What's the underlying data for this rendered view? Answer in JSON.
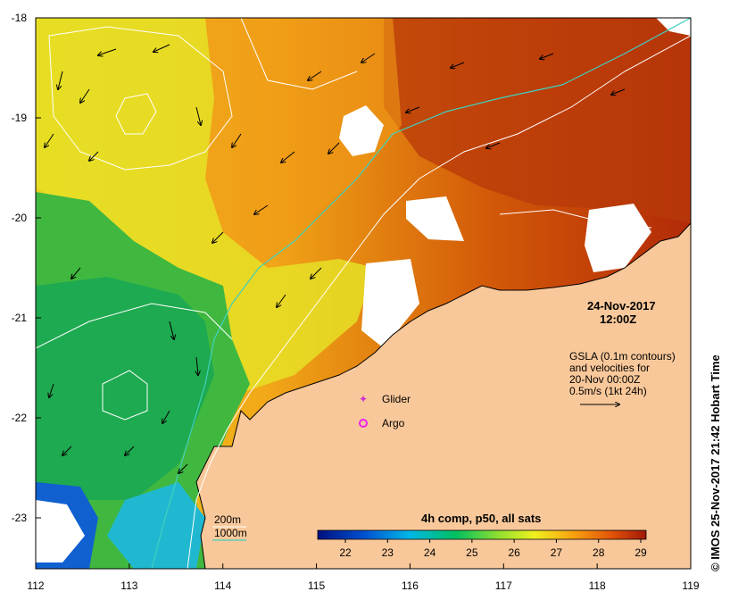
{
  "map": {
    "lon_ticks": [
      "112",
      "113",
      "114",
      "115",
      "116",
      "117",
      "118",
      "119"
    ],
    "lat_ticks": [
      "-18",
      "-19",
      "-20",
      "-21",
      "-22",
      "-23"
    ],
    "date": "24-Nov-2017",
    "time": "12:00Z",
    "gsla_lines": [
      "GSLA (0.1m contours)",
      "and velocities for",
      "20-Nov 00:00Z",
      "0.5m/s (1kt 24h)"
    ],
    "glider_label": "Glider",
    "argo_label": "Argo",
    "isobath_200": "200m",
    "isobath_1000": "1000m",
    "colorbar_title": "4h comp, p50, all sats",
    "colorbar_ticks": [
      "22",
      "23",
      "24",
      "25",
      "26",
      "27",
      "28",
      "29"
    ],
    "credit": "© IMOS 25-Nov-2017 21:42 Hobart Time",
    "colors": {
      "land": "#f9c89a",
      "isobath_1000": "#40d0c0",
      "contour": "#ffffff",
      "glider": "#cc33cc",
      "argo": "#ee22ee"
    }
  }
}
